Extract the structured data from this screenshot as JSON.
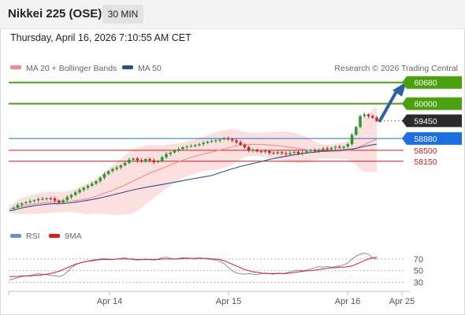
{
  "header": {
    "title": "Nikkei 225 (OSE)",
    "timeframe": "30 MIN"
  },
  "datetime": "Thursday, April 16, 2026 7:10:55 AM CET",
  "legend": {
    "ma20_label": "MA 20 + Bollinger Bands",
    "ma50_label": "MA 50",
    "credit": "Research © 2026 Trading Central",
    "rsi_label": "RSI",
    "rsi_ma_label": "9MA"
  },
  "colors": {
    "ma20": "#f28b8b",
    "ma50": "#2e4f8f",
    "green": "#4aa10d",
    "blue": "#1c6fe0",
    "red": "#cc2020",
    "dark": "#2b2b2b",
    "candle_up": "#2e9a2e",
    "candle_down": "#cc2222",
    "band": "#fbdada",
    "rsi": "#6d8fd8",
    "rsi_ma": "#e21a1a"
  },
  "chart_data": [
    {
      "type": "candlestick",
      "title": "Nikkei 225 (OSE)",
      "timeframe": "30 MIN",
      "x_ticks": [
        "Apr 14",
        "Apr 15",
        "Apr 16",
        "Apr 25"
      ],
      "ylim": [
        56450,
        60850
      ],
      "levels": [
        {
          "value": 60680,
          "label": "60680",
          "style": "resistance",
          "color": "#4aa10d"
        },
        {
          "value": 60000,
          "label": "60000",
          "style": "resistance",
          "color": "#4aa10d"
        },
        {
          "value": 59450,
          "label": "59450",
          "style": "last-price",
          "color": "#2b2b2b"
        },
        {
          "value": 58880,
          "label": "58880",
          "style": "pivot",
          "color": "#1c6fe0"
        },
        {
          "value": 58500,
          "label": "58500",
          "style": "support",
          "color": "#cc2020"
        },
        {
          "value": 58150,
          "label": "58150",
          "style": "support",
          "color": "#cc2020"
        }
      ],
      "close_series": [
        56620,
        56660,
        56750,
        56800,
        56830,
        56870,
        56900,
        56940,
        56930,
        56960,
        56950,
        56890,
        56820,
        56900,
        57000,
        57070,
        57150,
        57230,
        57300,
        57360,
        57430,
        57510,
        57620,
        57740,
        57830,
        57900,
        57950,
        58020,
        58100,
        58200,
        58240,
        58180,
        58140,
        58220,
        58180,
        58120,
        58160,
        58280,
        58380,
        58430,
        58490,
        58540,
        58600,
        58620,
        58640,
        58670,
        58700,
        58740,
        58780,
        58800,
        58820,
        58850,
        58880,
        58860,
        58820,
        58760,
        58680,
        58600,
        58500,
        58520,
        58470,
        58450,
        58480,
        58420,
        58400,
        58440,
        58410,
        58380,
        58420,
        58450,
        58400,
        58430,
        58470,
        58500,
        58480,
        58520,
        58560,
        58540,
        58580,
        58610,
        58580,
        58620,
        58700,
        59000,
        59250,
        59600,
        59650,
        59600,
        59550,
        59450
      ],
      "annotation": "arrow pointing up toward 60680",
      "series": [
        {
          "name": "MA 20 + Bollinger Bands"
        },
        {
          "name": "MA 50"
        }
      ]
    },
    {
      "type": "line",
      "title": "RSI",
      "ylim": [
        20,
        90
      ],
      "y_ticks": [
        70,
        50,
        30
      ],
      "rsi": [
        34,
        36,
        38,
        40,
        41,
        42,
        43,
        45,
        44,
        43,
        42,
        41,
        40,
        42,
        48,
        55,
        60,
        63,
        65,
        66,
        68,
        69,
        70,
        71,
        70,
        69,
        70,
        71,
        72,
        70,
        69,
        68,
        69,
        70,
        69,
        68,
        70,
        72,
        73,
        71,
        70,
        71,
        72,
        72,
        71,
        70,
        72,
        71,
        70,
        69,
        68,
        66,
        62,
        56,
        50,
        46,
        45,
        44,
        45,
        44,
        43,
        45,
        46,
        45,
        44,
        46,
        45,
        46,
        48,
        50,
        51,
        50,
        51,
        53,
        55,
        57,
        56,
        57,
        56,
        57,
        58,
        60,
        63,
        70,
        75,
        78,
        80,
        78,
        72,
        70
      ],
      "ma9": [
        40,
        40,
        40,
        41,
        41,
        41,
        42,
        42,
        43,
        44,
        45,
        47,
        49,
        52,
        55,
        58,
        61,
        63,
        65,
        66,
        67,
        68,
        69,
        69,
        69,
        69,
        70,
        70,
        70,
        70,
        70,
        69,
        69,
        69,
        69,
        69,
        69,
        70,
        70,
        70,
        70,
        70,
        71,
        71,
        71,
        71,
        71,
        71,
        71,
        70,
        70,
        69,
        67,
        64,
        61,
        58,
        55,
        52,
        50,
        48,
        47,
        46,
        45,
        45,
        45,
        45,
        45,
        45,
        46,
        47,
        48,
        49,
        50,
        50,
        51,
        52,
        53,
        54,
        55,
        55,
        56,
        56,
        57,
        58,
        61,
        64,
        67,
        70,
        72,
        73
      ]
    }
  ]
}
